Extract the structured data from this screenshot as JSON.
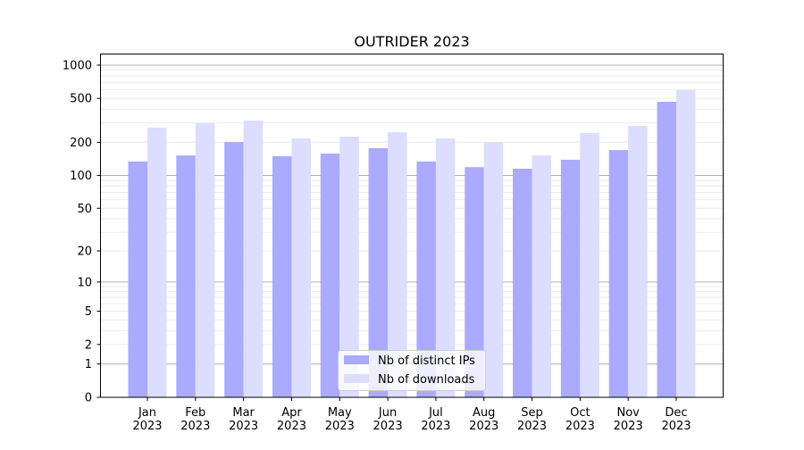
{
  "chart_data": {
    "type": "bar",
    "title": "OUTRIDER 2023",
    "xlabel": "",
    "ylabel": "",
    "yscale": "log(1+y)",
    "ylim": [
      0,
      1270
    ],
    "yticks": [
      0,
      1,
      2,
      5,
      10,
      20,
      50,
      100,
      200,
      500,
      1000
    ],
    "grid": true,
    "legend_position": "lower center",
    "categories": [
      "Jan\n2023",
      "Feb\n2023",
      "Mar\n2023",
      "Apr\n2023",
      "May\n2023",
      "Jun\n2023",
      "Jul\n2023",
      "Aug\n2023",
      "Sep\n2023",
      "Oct\n2023",
      "Nov\n2023",
      "Dec\n2023"
    ],
    "series": [
      {
        "name": "Nb of distinct IPs",
        "color": "#aaaaff",
        "values": [
          134,
          152,
          201,
          150,
          158,
          177,
          134,
          119,
          115,
          139,
          170,
          466
        ]
      },
      {
        "name": "Nb of downloads",
        "color": "#ddddff",
        "values": [
          272,
          298,
          315,
          217,
          225,
          247,
          217,
          201,
          152,
          243,
          282,
          593
        ]
      }
    ]
  }
}
